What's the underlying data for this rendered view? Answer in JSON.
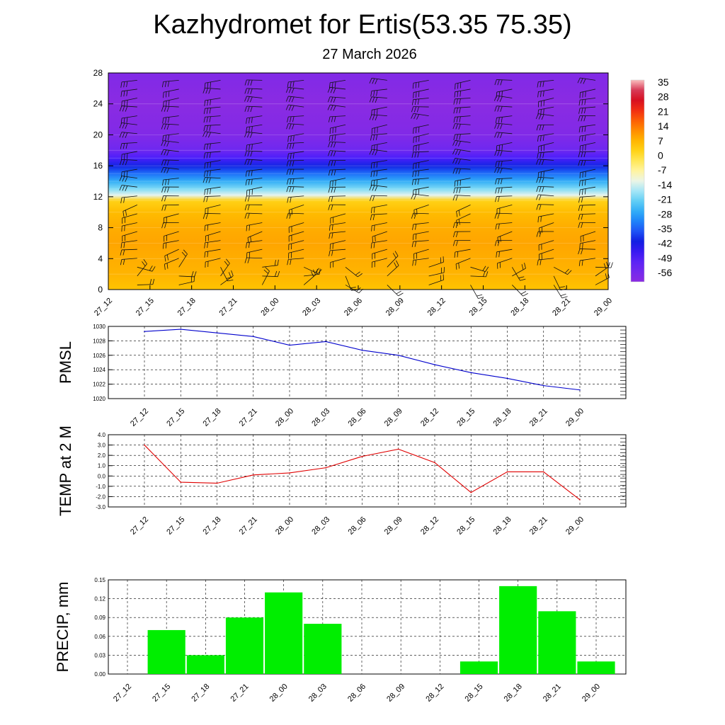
{
  "header": {
    "title": "Kazhydromet for Ertis(53.35 75.35)",
    "subtitle": "27 March 2026"
  },
  "colors": {
    "pmsl_line": "#0000cc",
    "temp_line": "#e00000",
    "precip_bar": "#00ee00",
    "grid": "#000000"
  },
  "chart_data": [
    {
      "type": "heatmap",
      "title": "Kazhydromet for Ertis(53.35 75.35)",
      "subtitle": "27 March 2026",
      "x": [
        "27_12",
        "27_15",
        "27_18",
        "27_21",
        "28_00",
        "28_03",
        "28_06",
        "28_09",
        "28_12",
        "28_15",
        "28_18",
        "28_21",
        "29_00"
      ],
      "ylim": [
        0,
        28
      ],
      "yticks": [
        0,
        4,
        8,
        12,
        16,
        20,
        24,
        28
      ],
      "colorbar_labels": [
        "35",
        "28",
        "21",
        "14",
        "7",
        "0",
        "-7",
        "-14",
        "-21",
        "-28",
        "-35",
        "-42",
        "-49",
        "-56"
      ],
      "temperature_profile_by_level": [
        {
          "level": 0,
          "value": 4
        },
        {
          "level": 2,
          "value": 6
        },
        {
          "level": 4,
          "value": 7
        },
        {
          "level": 6,
          "value": 8
        },
        {
          "level": 8,
          "value": 7
        },
        {
          "level": 10,
          "value": 5
        },
        {
          "level": 11.5,
          "value": 1
        },
        {
          "level": 12.2,
          "value": -14
        },
        {
          "level": 13,
          "value": -21
        },
        {
          "level": 14,
          "value": -28
        },
        {
          "level": 15,
          "value": -35
        },
        {
          "level": 16,
          "value": -42
        },
        {
          "level": 17,
          "value": -49
        },
        {
          "level": 18,
          "value": -56
        },
        {
          "level": 20,
          "value": -60
        },
        {
          "level": 24,
          "value": -62
        },
        {
          "level": 28,
          "value": -60
        }
      ],
      "overlay": "wind barbs"
    },
    {
      "type": "line",
      "ylabel": "PMSL",
      "x": [
        "27_12",
        "27_15",
        "27_18",
        "27_21",
        "28_00",
        "28_03",
        "28_06",
        "28_09",
        "28_12",
        "28_15",
        "28_18",
        "28_21",
        "29_00"
      ],
      "values": [
        1029.3,
        1029.6,
        1029.1,
        1028.6,
        1027.4,
        1027.9,
        1026.7,
        1026.0,
        1024.7,
        1023.6,
        1022.8,
        1021.8,
        1021.2
      ],
      "ylim": [
        1020,
        1030
      ],
      "yticks": [
        "1020",
        "1022",
        "1024",
        "1026",
        "1028",
        "1030"
      ],
      "grid": true
    },
    {
      "type": "line",
      "ylabel": "TEMP at 2 M",
      "x": [
        "27_12",
        "27_15",
        "27_18",
        "27_21",
        "28_00",
        "28_03",
        "28_06",
        "28_09",
        "28_12",
        "28_15",
        "28_18",
        "28_21",
        "29_00"
      ],
      "values": [
        3.0,
        -0.6,
        -0.7,
        0.1,
        0.3,
        0.8,
        1.9,
        2.6,
        1.3,
        -1.6,
        0.4,
        0.4,
        -2.3
      ],
      "ylim": [
        -3,
        4
      ],
      "yticks": [
        "-3.0",
        "-2.0",
        "-1.0",
        "0.0",
        "1.0",
        "2.0",
        "3.0",
        "4.0"
      ],
      "grid": true
    },
    {
      "type": "bar",
      "ylabel": "PRECIP, mm",
      "categories": [
        "27_12",
        "27_15",
        "27_18",
        "27_21",
        "28_00",
        "28_03",
        "28_06",
        "28_09",
        "28_12",
        "28_15",
        "28_18",
        "28_21",
        "29_00"
      ],
      "values": [
        0,
        0.07,
        0.03,
        0.09,
        0.13,
        0.08,
        0,
        0,
        0,
        0.02,
        0.14,
        0.1,
        0.02
      ],
      "ylim": [
        0,
        0.15
      ],
      "yticks": [
        "0.00",
        "0.03",
        "0.06",
        "0.09",
        "0.12",
        "0.15"
      ],
      "grid": true
    }
  ]
}
